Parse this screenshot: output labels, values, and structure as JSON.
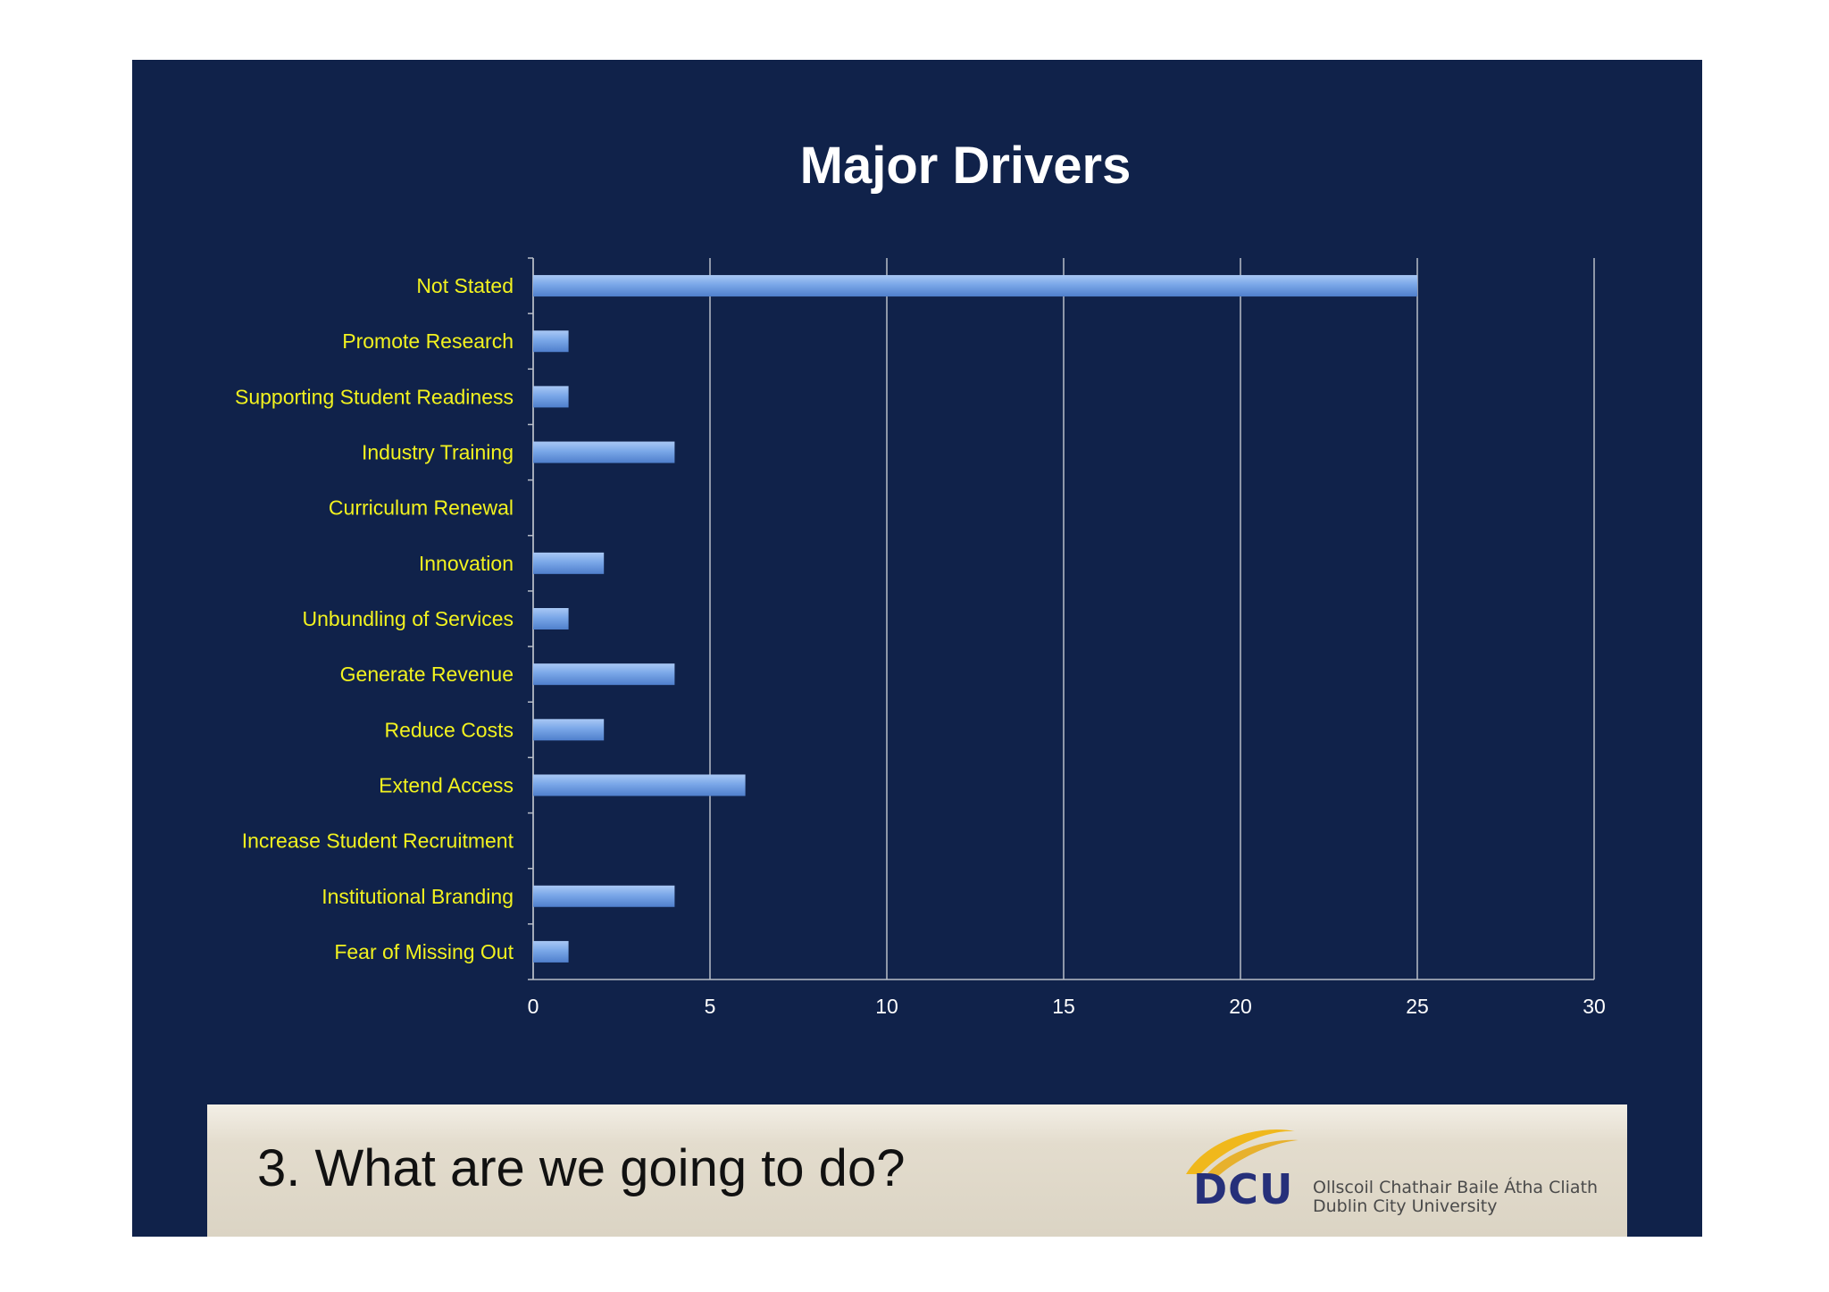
{
  "slide": {
    "footer_title": "3. What are we going to do?",
    "logo": {
      "mark": "DCU",
      "line1": "Ollscoil Chathair Baile Átha Cliath",
      "line2": "Dublin City University"
    }
  },
  "colors": {
    "background": "#10224a",
    "bar": "#7aa7e8",
    "category_label": "#f2f21f",
    "tick_label": "#ffffff",
    "title": "#ffffff",
    "gridline": "#b8bec8"
  },
  "chart_data": {
    "type": "bar",
    "orientation": "horizontal",
    "title": "Major Drivers",
    "xlabel": "",
    "ylabel": "",
    "xlim": [
      0,
      30
    ],
    "xticks": [
      0,
      5,
      10,
      15,
      20,
      25,
      30
    ],
    "grid": true,
    "legend": "none",
    "categories": [
      "Not Stated",
      "Promote Research",
      "Supporting Student Readiness",
      "Industry Training",
      "Curriculum Renewal",
      "Innovation",
      "Unbundling of Services",
      "Generate Revenue",
      "Reduce Costs",
      "Extend Access",
      "Increase Student Recruitment",
      "Institutional Branding",
      "Fear of Missing Out"
    ],
    "values": [
      25,
      1,
      1,
      4,
      0,
      2,
      1,
      4,
      2,
      6,
      0,
      4,
      1
    ]
  }
}
